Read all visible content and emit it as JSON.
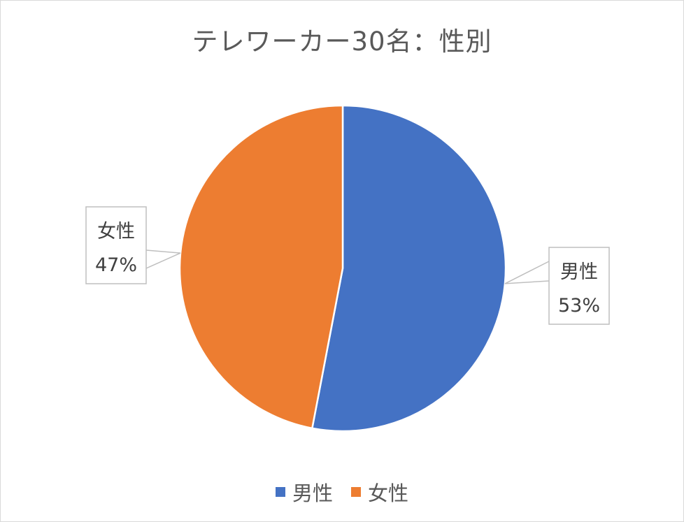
{
  "chart_data": {
    "type": "pie",
    "title": "テレワーカー30名：性別",
    "categories": [
      "男性",
      "女性"
    ],
    "values": [
      53,
      47
    ],
    "value_labels": [
      "53%",
      "47%"
    ],
    "colors": [
      "#4472c4",
      "#ed7d31"
    ],
    "legend_position": "bottom"
  }
}
